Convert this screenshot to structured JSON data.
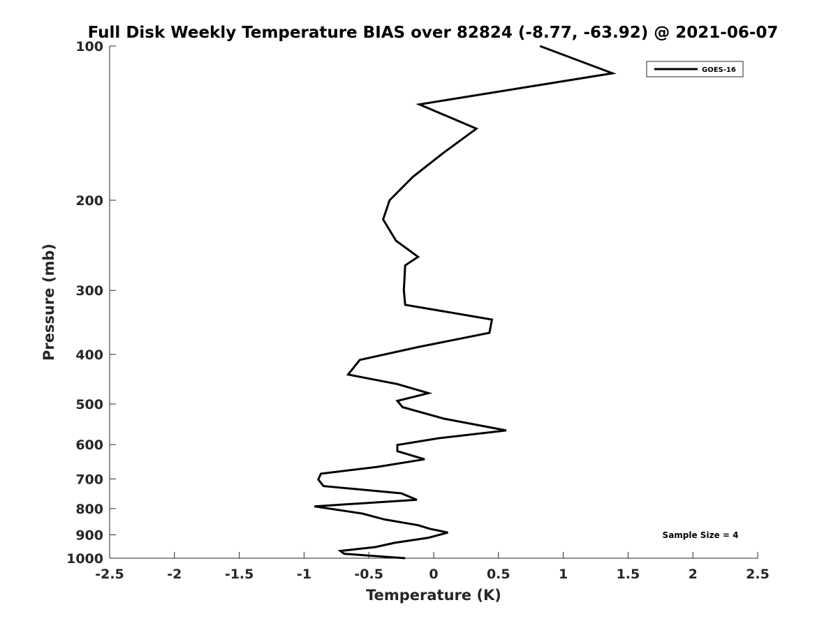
{
  "chart_data": {
    "type": "line",
    "title": "Full Disk Weekly Temperature BIAS over 82824 (-8.77, -63.92) @ 2021-06-07",
    "xlabel": "Temperature (K)",
    "ylabel": "Pressure (mb)",
    "xlim": [
      -2.5,
      2.5
    ],
    "ylim": [
      100,
      1000
    ],
    "yscale": "log",
    "yreversed": true,
    "xticks": [
      -2.5,
      -2,
      -1.5,
      -1,
      -0.5,
      0,
      0.5,
      1,
      1.5,
      2,
      2.5
    ],
    "xtick_labels": [
      "-2.5",
      "-2",
      "-1.5",
      "-1",
      "-0.5",
      "0",
      "0.5",
      "1",
      "1.5",
      "2",
      "2.5"
    ],
    "yticks": [
      100,
      200,
      300,
      400,
      500,
      600,
      700,
      800,
      900,
      1000
    ],
    "ytick_labels": [
      "100",
      "200",
      "300",
      "400",
      "500",
      "600",
      "700",
      "800",
      "900",
      "1000"
    ],
    "grid": false,
    "legend_position": "top-right",
    "annotation": "Sample Size = 4",
    "series": [
      {
        "name": "GOES-16",
        "color": "#000000",
        "x": [
          0.82,
          1.38,
          -0.11,
          0.33,
          0.07,
          -0.16,
          -0.34,
          -0.39,
          -0.29,
          -0.12,
          -0.22,
          -0.23,
          -0.22,
          0.45,
          0.43,
          -0.12,
          -0.57,
          -0.66,
          -0.28,
          -0.04,
          -0.28,
          -0.24,
          0.08,
          0.56,
          0.04,
          -0.28,
          -0.28,
          -0.07,
          -0.43,
          -0.87,
          -0.89,
          -0.85,
          -0.25,
          -0.13,
          -0.92,
          -0.55,
          -0.38,
          -0.12,
          -0.03,
          0.11,
          -0.04,
          -0.3,
          -0.45,
          -0.72,
          -0.69,
          -0.22
        ],
        "y": [
          100,
          113,
          130,
          145,
          162,
          180,
          200,
          218,
          240,
          258,
          268,
          300,
          320,
          342,
          363,
          387,
          410,
          438,
          457,
          476,
          493,
          507,
          534,
          563,
          583,
          601,
          618,
          641,
          663,
          684,
          702,
          723,
          747,
          769,
          792,
          818,
          840,
          862,
          876,
          891,
          912,
          933,
          951,
          968,
          980,
          1000
        ]
      }
    ]
  }
}
